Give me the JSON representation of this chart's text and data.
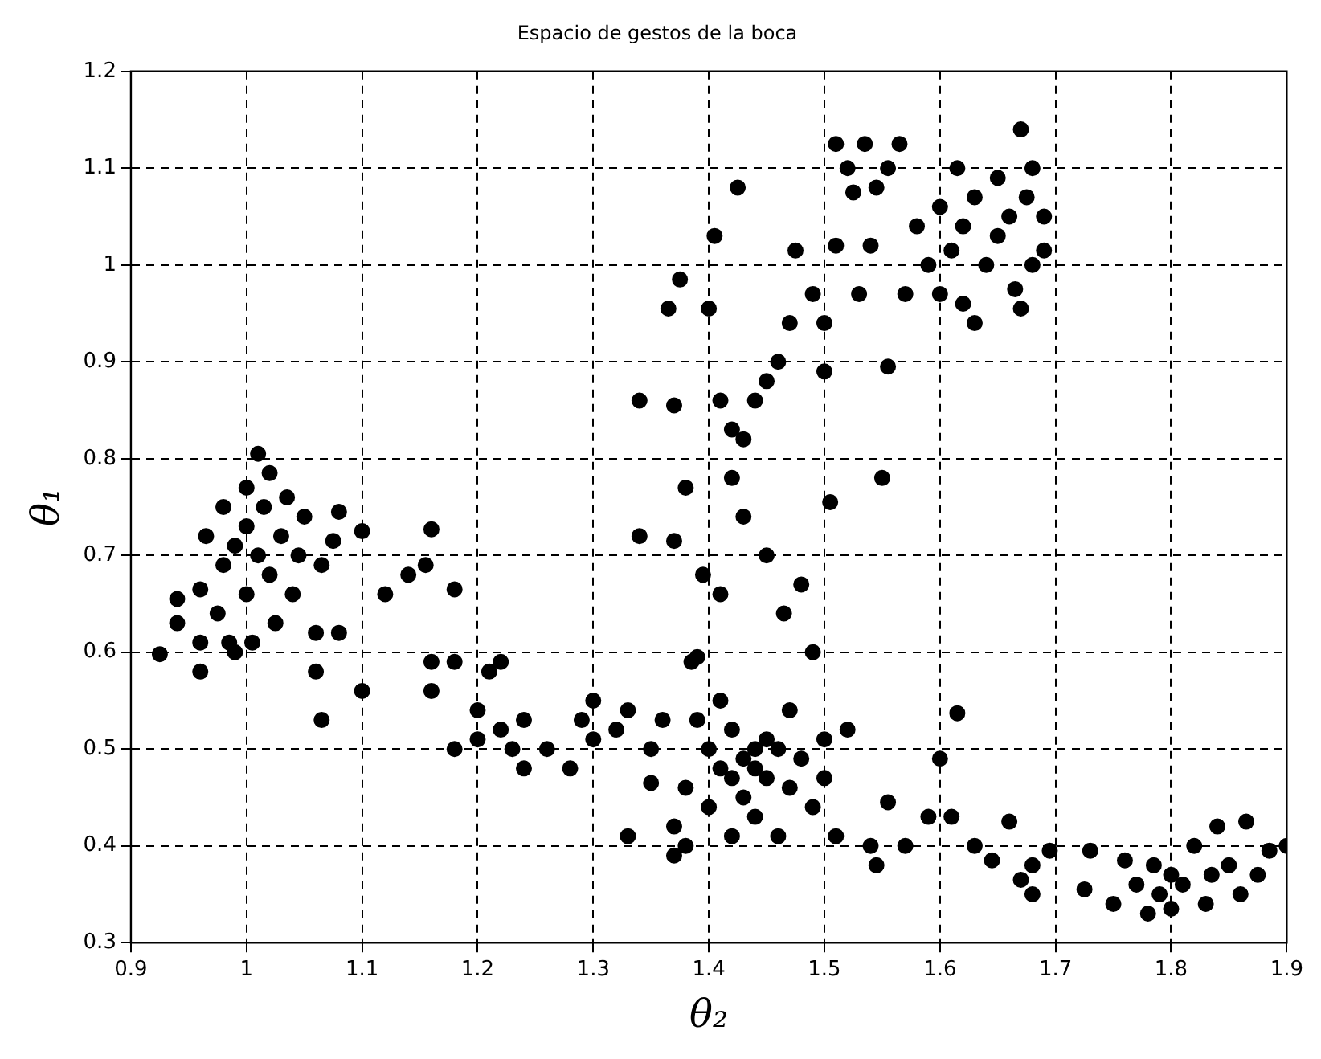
{
  "chart_data": {
    "type": "scatter",
    "title": "Espacio de gestos de la boca",
    "xlabel": "θ₂",
    "ylabel": "θ₁",
    "xlim": [
      0.9,
      1.9
    ],
    "ylim": [
      0.3,
      1.2
    ],
    "xticks": [
      0.9,
      1,
      1.1,
      1.2,
      1.3,
      1.4,
      1.5,
      1.6,
      1.7,
      1.8,
      1.9
    ],
    "yticks": [
      0.3,
      0.4,
      0.5,
      0.6,
      0.7,
      0.8,
      0.9,
      1,
      1.1,
      1.2
    ],
    "grid": true,
    "marker": "circle",
    "legend": false,
    "series": [
      {
        "color": "#000000",
        "x": [
          0.925,
          0.94,
          0.94,
          0.96,
          0.96,
          0.96,
          0.965,
          0.975,
          0.98,
          0.98,
          0.985,
          0.99,
          0.99,
          1.0,
          1.0,
          1.0,
          1.005,
          1.01,
          1.01,
          1.015,
          1.02,
          1.02,
          1.025,
          1.03,
          1.035,
          1.04,
          1.045,
          1.05,
          1.06,
          1.06,
          1.065,
          1.065,
          1.075,
          1.08,
          1.08,
          1.1,
          1.1,
          1.12,
          1.14,
          1.155,
          1.16,
          1.16,
          1.16,
          1.18,
          1.18,
          1.18,
          1.2,
          1.2,
          1.21,
          1.22,
          1.22,
          1.23,
          1.24,
          1.24,
          1.26,
          1.28,
          1.29,
          1.3,
          1.3,
          1.32,
          1.33,
          1.33,
          1.35,
          1.35,
          1.36,
          1.37,
          1.37,
          1.38,
          1.38,
          1.39,
          1.39,
          1.4,
          1.4,
          1.41,
          1.41,
          1.42,
          1.42,
          1.42,
          1.43,
          1.43,
          1.44,
          1.44,
          1.44,
          1.45,
          1.45,
          1.46,
          1.46,
          1.47,
          1.47,
          1.48,
          1.49,
          1.5,
          1.5,
          1.51,
          1.52,
          1.54,
          1.545,
          1.555,
          1.57,
          1.59,
          1.6,
          1.61,
          1.615,
          1.34,
          1.34,
          1.365,
          1.37,
          1.37,
          1.375,
          1.38,
          1.385,
          1.395,
          1.4,
          1.405,
          1.41,
          1.41,
          1.42,
          1.42,
          1.425,
          1.43,
          1.43,
          1.44,
          1.45,
          1.45,
          1.46,
          1.465,
          1.47,
          1.475,
          1.48,
          1.49,
          1.49,
          1.5,
          1.5,
          1.505,
          1.51,
          1.51,
          1.52,
          1.525,
          1.53,
          1.535,
          1.54,
          1.545,
          1.55,
          1.555,
          1.555,
          1.565,
          1.57,
          1.58,
          1.59,
          1.6,
          1.6,
          1.61,
          1.615,
          1.62,
          1.62,
          1.63,
          1.63,
          1.64,
          1.65,
          1.65,
          1.66,
          1.665,
          1.67,
          1.67,
          1.675,
          1.68,
          1.68,
          1.69,
          1.69,
          1.63,
          1.645,
          1.66,
          1.67,
          1.68,
          1.68,
          1.695,
          1.725,
          1.73,
          1.75,
          1.76,
          1.77,
          1.78,
          1.785,
          1.79,
          1.8,
          1.8,
          1.81,
          1.82,
          1.83,
          1.835,
          1.84,
          1.85,
          1.86,
          1.865,
          1.875,
          1.885,
          1.9
        ],
        "values": [
          0.598,
          0.63,
          0.655,
          0.58,
          0.61,
          0.665,
          0.72,
          0.64,
          0.69,
          0.75,
          0.61,
          0.6,
          0.71,
          0.66,
          0.73,
          0.77,
          0.61,
          0.805,
          0.7,
          0.75,
          0.785,
          0.68,
          0.63,
          0.72,
          0.76,
          0.66,
          0.7,
          0.74,
          0.62,
          0.58,
          0.53,
          0.69,
          0.715,
          0.745,
          0.62,
          0.725,
          0.56,
          0.66,
          0.68,
          0.69,
          0.727,
          0.59,
          0.56,
          0.665,
          0.59,
          0.5,
          0.54,
          0.51,
          0.58,
          0.59,
          0.52,
          0.5,
          0.48,
          0.53,
          0.5,
          0.48,
          0.53,
          0.51,
          0.55,
          0.52,
          0.41,
          0.54,
          0.5,
          0.465,
          0.53,
          0.39,
          0.42,
          0.4,
          0.46,
          0.53,
          0.595,
          0.44,
          0.5,
          0.48,
          0.55,
          0.41,
          0.47,
          0.52,
          0.49,
          0.45,
          0.5,
          0.48,
          0.43,
          0.51,
          0.47,
          0.5,
          0.41,
          0.54,
          0.46,
          0.49,
          0.44,
          0.51,
          0.47,
          0.41,
          0.52,
          0.4,
          0.38,
          0.445,
          0.4,
          0.43,
          0.49,
          0.43,
          0.537,
          0.86,
          0.72,
          0.955,
          0.715,
          0.855,
          0.985,
          0.77,
          0.59,
          0.68,
          0.955,
          1.03,
          0.86,
          0.66,
          0.83,
          0.78,
          1.08,
          0.82,
          0.74,
          0.86,
          0.88,
          0.7,
          0.9,
          0.64,
          0.94,
          1.015,
          0.67,
          0.97,
          0.6,
          0.94,
          0.89,
          0.755,
          1.125,
          1.02,
          1.1,
          1.075,
          0.97,
          1.125,
          1.02,
          1.08,
          0.78,
          0.895,
          1.1,
          1.125,
          0.97,
          1.04,
          1.0,
          0.97,
          1.06,
          1.015,
          1.1,
          0.96,
          1.04,
          0.94,
          1.07,
          1.0,
          1.09,
          1.03,
          1.05,
          0.975,
          1.14,
          0.955,
          1.07,
          1.1,
          1.0,
          1.015,
          1.05,
          0.4,
          0.385,
          0.425,
          0.365,
          0.38,
          0.35,
          0.395,
          0.355,
          0.395,
          0.34,
          0.385,
          0.36,
          0.33,
          0.38,
          0.35,
          0.335,
          0.37,
          0.36,
          0.4,
          0.34,
          0.37,
          0.42,
          0.38,
          0.35,
          0.425,
          0.37,
          0.395,
          0.4
        ]
      }
    ]
  }
}
